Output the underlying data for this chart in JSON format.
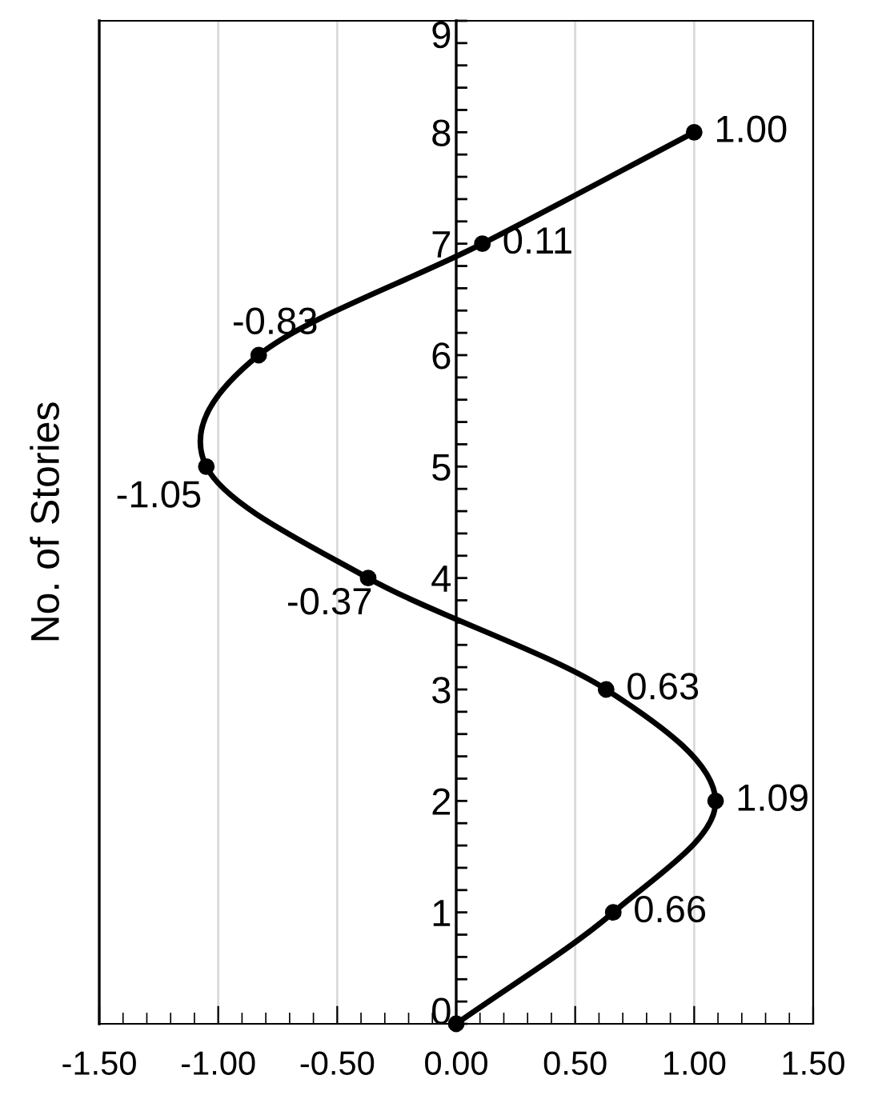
{
  "chart_data": {
    "type": "line",
    "ylabel": "No. of Stories",
    "x": [
      0,
      0.66,
      1.09,
      0.63,
      -0.37,
      -1.05,
      -0.83,
      0.11,
      1.0
    ],
    "values": [
      0,
      1,
      2,
      3,
      4,
      5,
      6,
      7,
      8
    ],
    "annotations": [
      {
        "text": "0.66",
        "x": 0.66,
        "y": 1
      },
      {
        "text": "1.09",
        "x": 1.09,
        "y": 2
      },
      {
        "text": "0.63",
        "x": 0.63,
        "y": 3
      },
      {
        "text": "-0.37",
        "x": -0.37,
        "y": 4
      },
      {
        "text": "-1.05",
        "x": -1.05,
        "y": 5
      },
      {
        "text": "-0.83",
        "x": -0.83,
        "y": 6
      },
      {
        "text": "0.11",
        "x": 0.11,
        "y": 7
      },
      {
        "text": "1.00",
        "x": 1.0,
        "y": 8
      }
    ],
    "color": "#000000",
    "marker": "circle",
    "line_style": "solid",
    "xlim": [
      -1.5,
      1.5
    ],
    "xticks": [
      {
        "value": -1.5,
        "label": "-1.50"
      },
      {
        "value": -1.0,
        "label": "-1.00"
      },
      {
        "value": -0.5,
        "label": "-0.50"
      },
      {
        "value": 0,
        "label": "0.00"
      },
      {
        "value": 0.5,
        "label": "0.50"
      },
      {
        "value": 1.0,
        "label": "1.00"
      },
      {
        "value": 1.5,
        "label": "1.50"
      }
    ],
    "ylim": [
      0,
      9
    ],
    "yticks": [
      0,
      1,
      2,
      3,
      4,
      5,
      6,
      7,
      8,
      9
    ],
    "grid": "x"
  }
}
